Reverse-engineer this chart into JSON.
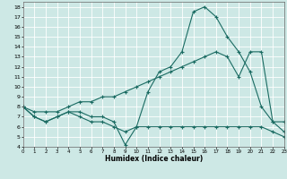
{
  "xlabel": "Humidex (Indice chaleur)",
  "bg_color": "#cde8e5",
  "grid_color": "#ffffff",
  "line_color": "#1a6b62",
  "line1_x": [
    0,
    1,
    2,
    3,
    4,
    5,
    6,
    7,
    8,
    9,
    10,
    11,
    12,
    13,
    14,
    15,
    16,
    17,
    18,
    19,
    20,
    21,
    22,
    23
  ],
  "line1_y": [
    8.0,
    7.0,
    6.5,
    7.0,
    7.5,
    7.0,
    6.5,
    6.5,
    6.0,
    5.5,
    6.0,
    6.0,
    6.0,
    6.0,
    6.0,
    6.0,
    6.0,
    6.0,
    6.0,
    6.0,
    6.0,
    6.0,
    5.5,
    5.0
  ],
  "line2_x": [
    0,
    1,
    2,
    3,
    4,
    5,
    6,
    7,
    8,
    9,
    10,
    11,
    12,
    13,
    14,
    15,
    16,
    17,
    18,
    19,
    20,
    21,
    22,
    23
  ],
  "line2_y": [
    8.0,
    7.0,
    6.5,
    7.0,
    7.5,
    7.5,
    7.0,
    7.0,
    6.5,
    4.2,
    6.0,
    9.5,
    11.5,
    12.0,
    13.5,
    17.5,
    18.0,
    17.0,
    15.0,
    13.5,
    11.5,
    8.0,
    6.5,
    6.5
  ],
  "line3_x": [
    0,
    1,
    2,
    3,
    4,
    5,
    6,
    7,
    8,
    9,
    10,
    11,
    12,
    13,
    14,
    15,
    16,
    17,
    18,
    19,
    20,
    21,
    22,
    23
  ],
  "line3_y": [
    8.0,
    7.5,
    7.5,
    7.5,
    8.0,
    8.5,
    8.5,
    9.0,
    9.0,
    9.5,
    10.0,
    10.5,
    11.0,
    11.5,
    12.0,
    12.5,
    13.0,
    13.5,
    13.0,
    11.0,
    13.5,
    13.5,
    6.5,
    5.5
  ],
  "xlim": [
    0,
    23
  ],
  "ylim": [
    4,
    18.5
  ],
  "yticks": [
    4,
    5,
    6,
    7,
    8,
    9,
    10,
    11,
    12,
    13,
    14,
    15,
    16,
    17,
    18
  ],
  "xticks": [
    0,
    1,
    2,
    3,
    4,
    5,
    6,
    7,
    8,
    9,
    10,
    11,
    12,
    13,
    14,
    15,
    16,
    17,
    18,
    19,
    20,
    21,
    22,
    23
  ]
}
